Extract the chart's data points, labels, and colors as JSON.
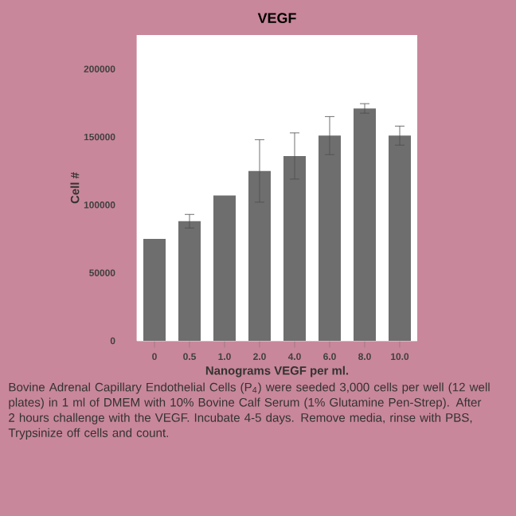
{
  "chart_data": {
    "type": "bar",
    "title": "VEGF",
    "xlabel": "Nanograms VEGF per ml.",
    "ylabel": "Cell #",
    "categories": [
      "0",
      "0.5",
      "1.0",
      "2.0",
      "4.0",
      "6.0",
      "8.0",
      "10.0"
    ],
    "values": [
      75000,
      88000,
      107000,
      125000,
      136000,
      151000,
      171000,
      151000
    ],
    "errors": [
      null,
      5000,
      null,
      23000,
      17000,
      14000,
      3500,
      7000
    ],
    "color": "#6e6e6e",
    "ylim": [
      0,
      225000
    ],
    "yticks": [
      0,
      50000,
      100000,
      150000,
      200000
    ],
    "annotations": [
      "Bovine Adrenal Capillary Endothelial Cells (P$_{4}$) were seeded 3,000 cells per well (12 well plates) in 1 ml of DMEM with 10% Bovine Calf Serum (1% Glutamine Pen-Strep). After 2 hours challenge with the VEGF. Incubate 4-5 days. Remove media, rinse with PBS, Trypsinize off cells and count."
    ]
  }
}
